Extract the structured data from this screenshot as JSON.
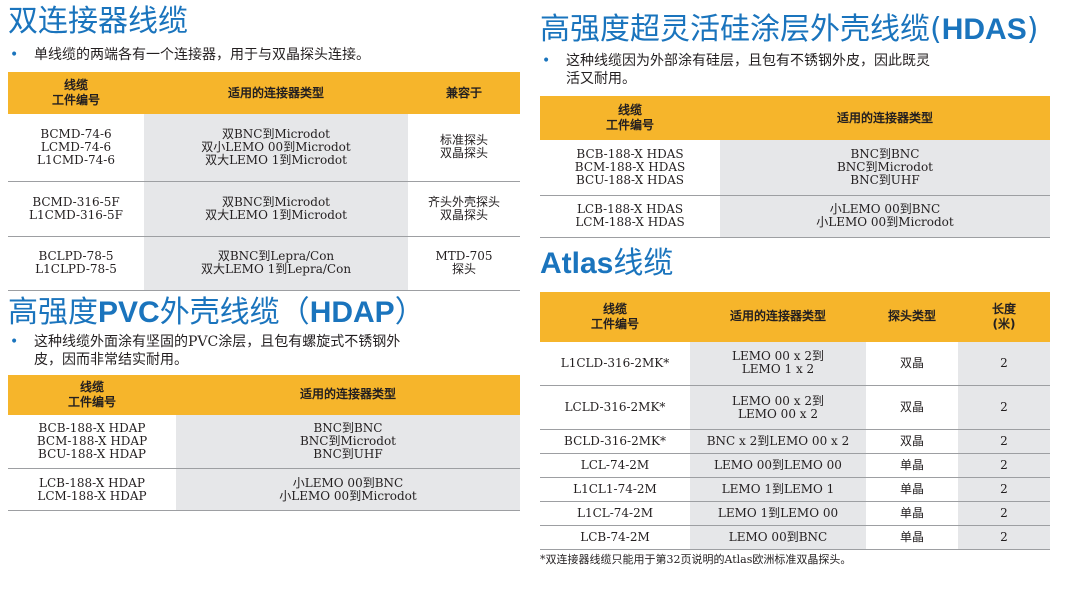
{
  "dual_cable": {
    "title": "双连接器线缆",
    "bullet": "单线缆的两端各有一个连接器，用于与双晶探头连接。",
    "headers": [
      "线缆",
      "工件编号",
      "适用的连接器类型",
      "兼容于"
    ],
    "rows": [
      {
        "part": [
          "BCMD-74-6",
          "LCMD-74-6",
          "L1CMD-74-6"
        ],
        "conn": [
          "双BNC到Microdot",
          "双小LEMO 00到Microdot",
          "双大LEMO 1到Microdot"
        ],
        "compat": [
          "标准探头",
          "双晶探头"
        ]
      },
      {
        "part": [
          "BCMD-316-5F",
          "L1CMD-316-5F"
        ],
        "conn": [
          "双BNC到Microdot",
          "双大LEMO 1到Microdot"
        ],
        "compat": [
          "齐头外壳探头",
          "双晶探头"
        ]
      },
      {
        "part": [
          "BCLPD-78-5",
          "L1CLPD-78-5"
        ],
        "conn": [
          "双BNC到Lepra/Con",
          "双大LEMO 1到Lepra/Con"
        ],
        "compat": [
          "MTD-705",
          "探头"
        ]
      }
    ]
  },
  "pvc": {
    "title_cjk_1": "高强度",
    "title_latin_1": "PVC",
    "title_cjk_2": "外壳线缆（",
    "title_latin_2": "HDAP",
    "title_cjk_3": "）",
    "bullet_line1": "这种线缆外面涂有坚固的PVC涂层，且包有螺旋式不锈钢外",
    "bullet_line2": "皮，因而非常结实耐用。",
    "headers": [
      "线缆",
      "工件编号",
      "适用的连接器类型"
    ],
    "rows": [
      {
        "part": [
          "BCB-188-X  HDAP",
          "BCM-188-X  HDAP",
          "BCU-188-X  HDAP"
        ],
        "conn": [
          "BNC到BNC",
          "BNC到Microdot",
          "BNC到UHF"
        ]
      },
      {
        "part": [
          "LCB-188-X  HDAP",
          "LCM-188-X  HDAP"
        ],
        "conn": [
          "小LEMO 00到BNC",
          "小LEMO 00到Microdot"
        ]
      }
    ]
  },
  "hdas": {
    "title_cjk": "高强度超灵活硅涂层外壳线缆(",
    "title_latin": "HDAS",
    "title_end": ")",
    "bullet_line1": "这种线缆因为外部涂有硅层，且包有不锈钢外皮，因此既灵",
    "bullet_line2": "活又耐用。",
    "headers": [
      "线缆",
      "工件编号",
      "适用的连接器类型"
    ],
    "rows": [
      {
        "part": [
          "BCB-188-X  HDAS",
          "BCM-188-X  HDAS",
          "BCU-188-X  HDAS"
        ],
        "conn": [
          "BNC到BNC",
          "BNC到Microdot",
          "BNC到UHF"
        ]
      },
      {
        "part": [
          "LCB-188-X  HDAS",
          "LCM-188-X  HDAS"
        ],
        "conn": [
          "小LEMO 00到BNC",
          "小LEMO 00到Microdot"
        ]
      }
    ]
  },
  "atlas": {
    "title_latin": "Atlas",
    "title_cjk": "线缆",
    "headers": [
      "线缆",
      "工件编号",
      "适用的连接器类型",
      "探头类型",
      "长度",
      "(米)"
    ],
    "rows": [
      {
        "part": "L1CLD-316-2MK*",
        "conn": [
          "LEMO  00  x  2到",
          "LEMO  1  x  2"
        ],
        "type": "双晶",
        "len": "2"
      },
      {
        "part": "LCLD-316-2MK*",
        "conn": [
          "LEMO  00  x  2到",
          "LEMO  00  x  2"
        ],
        "type": "双晶",
        "len": "2"
      },
      {
        "part": "BCLD-316-2MK*",
        "conn": [
          "BNC  x  2到LEMO  00  x  2"
        ],
        "type": "双晶",
        "len": "2"
      },
      {
        "part": "LCL-74-2M",
        "conn": [
          "LEMO  00到LEMO  00"
        ],
        "type": "单晶",
        "len": "2"
      },
      {
        "part": "L1CL1-74-2M",
        "conn": [
          "LEMO  1到LEMO  1"
        ],
        "type": "单晶",
        "len": "2"
      },
      {
        "part": "L1CL-74-2M",
        "conn": [
          "LEMO  1到LEMO  00"
        ],
        "type": "单晶",
        "len": "2"
      },
      {
        "part": "LCB-74-2M",
        "conn": [
          "LEMO  00到BNC"
        ],
        "type": "单晶",
        "len": "2"
      }
    ],
    "footnote": "*双连接器线缆只能用于第32页说明的Atlas欧洲标准双晶探头。"
  }
}
